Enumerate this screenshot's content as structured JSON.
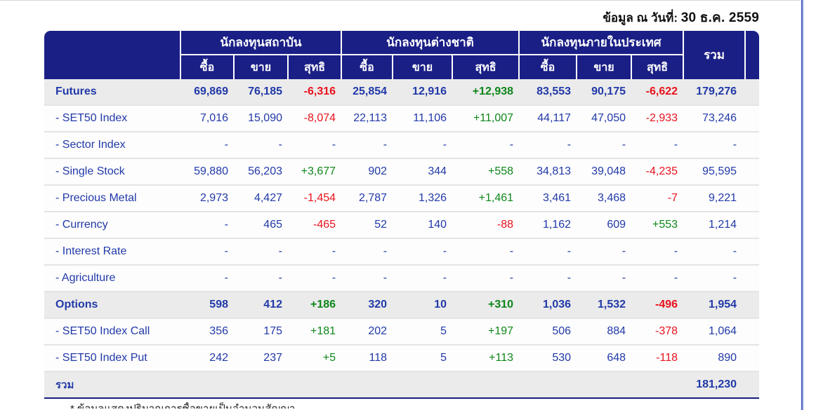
{
  "page": {
    "date_label": "ข้อมูล ณ วันที่:",
    "date_value": "30 ธ.ค. 2559",
    "footnote_clipped": "* ข้อมูลแสดงปริมาณการซื้อขายเป็นจำนวนสัญญา"
  },
  "table": {
    "groups": [
      {
        "label": "นักลงทุนสถาบัน"
      },
      {
        "label": "นักลงทุนต่างชาติ"
      },
      {
        "label": "นักลงทุนภายในประเทศ"
      }
    ],
    "sub_headers": [
      "ซื้อ",
      "ขาย",
      "สุทธิ"
    ],
    "total_header": "รวม",
    "rows": [
      {
        "label": "Futures",
        "type": "section",
        "values": [
          "69,869",
          "76,185",
          "-6,316",
          "25,854",
          "12,916",
          "+12,938",
          "83,553",
          "90,175",
          "-6,622",
          "179,276"
        ]
      },
      {
        "label": "- SET50 Index",
        "type": "item",
        "values": [
          "7,016",
          "15,090",
          "-8,074",
          "22,113",
          "11,106",
          "+11,007",
          "44,117",
          "47,050",
          "-2,933",
          "73,246"
        ]
      },
      {
        "label": "- Sector Index",
        "type": "item",
        "values": [
          "-",
          "-",
          "-",
          "-",
          "-",
          "-",
          "-",
          "-",
          "-",
          "-"
        ]
      },
      {
        "label": "- Single Stock",
        "type": "item",
        "values": [
          "59,880",
          "56,203",
          "+3,677",
          "902",
          "344",
          "+558",
          "34,813",
          "39,048",
          "-4,235",
          "95,595"
        ]
      },
      {
        "label": "- Precious Metal",
        "type": "item",
        "values": [
          "2,973",
          "4,427",
          "-1,454",
          "2,787",
          "1,326",
          "+1,461",
          "3,461",
          "3,468",
          "-7",
          "9,221"
        ]
      },
      {
        "label": "- Currency",
        "type": "item",
        "values": [
          "-",
          "465",
          "-465",
          "52",
          "140",
          "-88",
          "1,162",
          "609",
          "+553",
          "1,214"
        ]
      },
      {
        "label": "- Interest Rate",
        "type": "item",
        "values": [
          "-",
          "-",
          "-",
          "-",
          "-",
          "-",
          "-",
          "-",
          "-",
          "-"
        ]
      },
      {
        "label": "- Agriculture",
        "type": "item",
        "values": [
          "-",
          "-",
          "-",
          "-",
          "-",
          "-",
          "-",
          "-",
          "-",
          "-"
        ]
      },
      {
        "label": "Options",
        "type": "section",
        "values": [
          "598",
          "412",
          "+186",
          "320",
          "10",
          "+310",
          "1,036",
          "1,532",
          "-496",
          "1,954"
        ]
      },
      {
        "label": "- SET50 Index Call",
        "type": "item",
        "values": [
          "356",
          "175",
          "+181",
          "202",
          "5",
          "+197",
          "506",
          "884",
          "-378",
          "1,064"
        ]
      },
      {
        "label": "- SET50 Index Put",
        "type": "item",
        "values": [
          "242",
          "237",
          "+5",
          "118",
          "5",
          "+113",
          "530",
          "648",
          "-118",
          "890"
        ]
      },
      {
        "label": "รวม",
        "type": "total",
        "values": [
          "",
          "",
          "",
          "",
          "",
          "",
          "",
          "",
          "",
          "181,230"
        ]
      }
    ]
  },
  "colors": {
    "header_bg": "#1a1f86",
    "text_blue": "#2139a8",
    "negative_red": "#e8131d",
    "positive_green": "#0e861a",
    "band_gray": "#ebebeb",
    "page_border_blue": "#4c60c6"
  }
}
